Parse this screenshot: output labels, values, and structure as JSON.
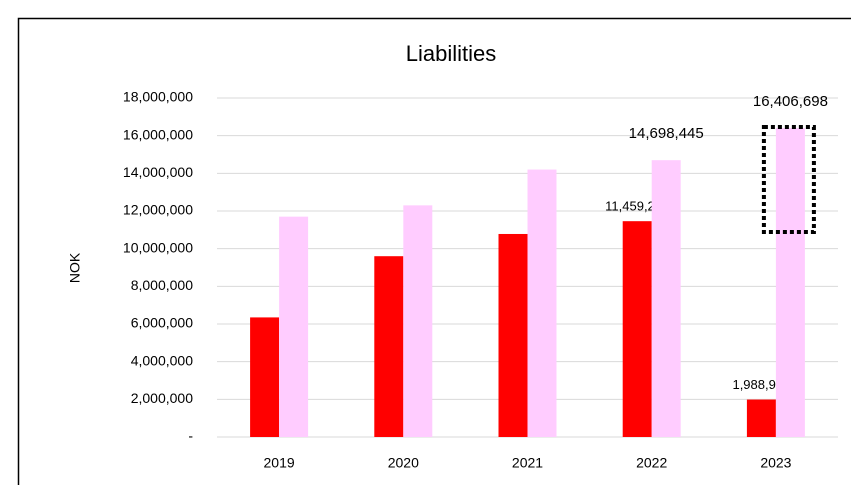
{
  "chart_data": {
    "type": "bar",
    "title": "Liabilities",
    "y_label": "NOK",
    "categories": [
      "2019",
      "2020",
      "2021",
      "2022",
      "2023"
    ],
    "series": [
      {
        "color": "#ff0000",
        "values": [
          6350000,
          9600000,
          10780000,
          11459265,
          1988985
        ],
        "value_labels": [
          null,
          null,
          null,
          "11,459,265",
          "1,988,985"
        ]
      },
      {
        "color": "#ffccff",
        "values": [
          11700000,
          12300000,
          14200000,
          14698445,
          16406698
        ],
        "value_labels": [
          null,
          null,
          null,
          "14,698,445",
          "16,406,698"
        ]
      }
    ],
    "ylim": [
      0,
      18000000
    ],
    "yticks": [
      {
        "value": 0,
        "label": "-"
      },
      {
        "value": 2000000,
        "label": "2,000,000"
      },
      {
        "value": 4000000,
        "label": "4,000,000"
      },
      {
        "value": 6000000,
        "label": "6,000,000"
      },
      {
        "value": 8000000,
        "label": "8,000,000"
      },
      {
        "value": 10000000,
        "label": "10,000,000"
      },
      {
        "value": 12000000,
        "label": "12,000,000"
      },
      {
        "value": 14000000,
        "label": "14,000,000"
      },
      {
        "value": 16000000,
        "label": "16,000,000"
      },
      {
        "value": 18000000,
        "label": "18,000,000"
      }
    ],
    "grid": true
  }
}
